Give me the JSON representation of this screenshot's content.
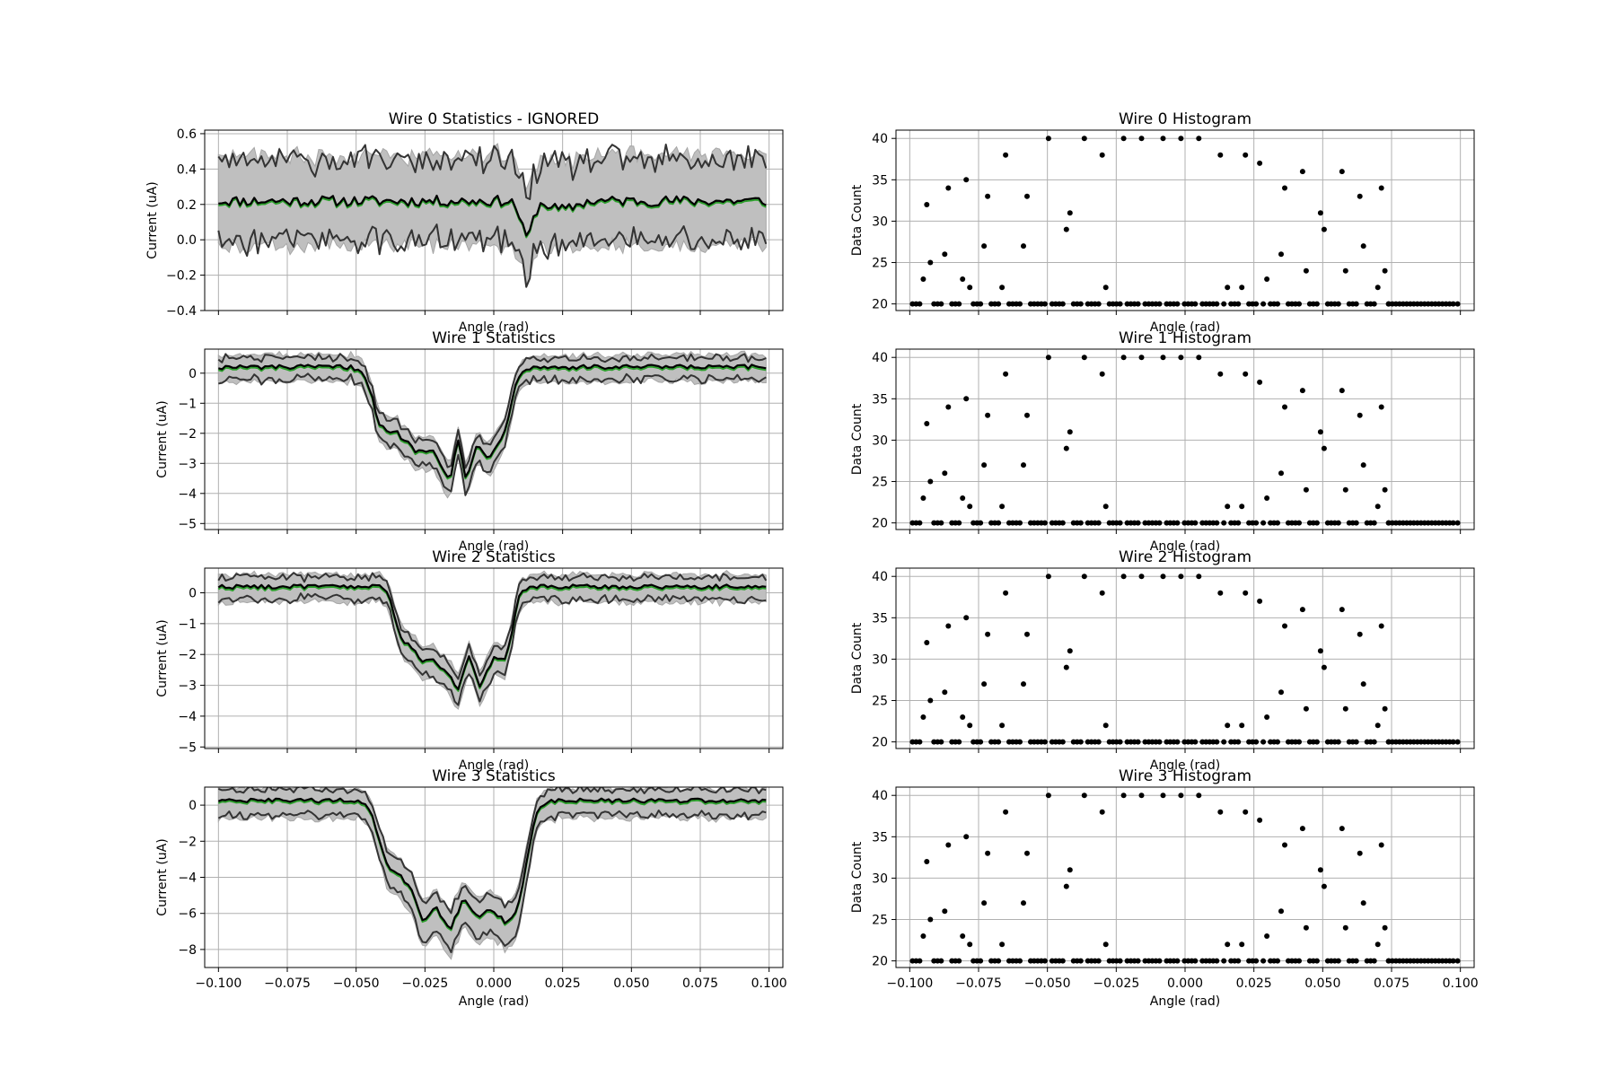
{
  "figure": {
    "background": "#ffffff"
  },
  "style": {
    "band_color": "#bfbfbf",
    "band_edge": "#a6a6a6",
    "envelope_color": "#333333",
    "mean_color": "#000000",
    "median_color": "#2ca02c",
    "marker_color": "#000000",
    "grid_color": "#b0b0b0"
  },
  "chart_data": [
    {
      "type": "area",
      "title": "Wire 0 Statistics - IGNORED",
      "xlabel": "Angle (rad)",
      "ylabel": "Current (uA)",
      "xlim": [
        -0.105,
        0.105
      ],
      "ylim": [
        -0.4,
        0.62
      ],
      "x_range": [
        -0.1,
        0.099
      ],
      "x_step": 0.0013,
      "xticks": [
        -0.1,
        -0.075,
        -0.05,
        -0.025,
        0,
        0.025,
        0.05,
        0.075,
        0.1
      ],
      "xticklabels": [],
      "yticks": [
        -0.4,
        -0.2,
        0,
        0.2,
        0.4,
        0.6
      ],
      "yticklabels": [
        "−0.4",
        "−0.2",
        "0.0",
        "0.2",
        "0.4",
        "0.6"
      ],
      "grid": true,
      "series": [
        {
          "role": "mean",
          "baseline": 0.22,
          "dips": [
            {
              "center": 0.012,
              "depth": 0.2,
              "width": 0.003
            },
            {
              "center": 0.025,
              "depth": 0.05,
              "width": 0.006
            }
          ],
          "noise": 0.03
        },
        {
          "role": "median",
          "baseline": 0.22,
          "dips": [
            {
              "center": 0.012,
              "depth": 0.2,
              "width": 0.003
            }
          ],
          "noise": 0.02
        },
        {
          "role": "band_upper",
          "offset": 0.26
        },
        {
          "role": "band_lower",
          "offset": -0.25
        },
        {
          "role": "envelope_max",
          "offset": 0.23,
          "noise": 0.07
        },
        {
          "role": "envelope_min",
          "offset": -0.22,
          "noise": 0.07
        }
      ]
    },
    {
      "type": "area",
      "title": "Wire 1 Statistics",
      "xlabel": "Angle (rad)",
      "ylabel": "Current (uA)",
      "xlim": [
        -0.105,
        0.105
      ],
      "ylim": [
        -5.2,
        0.8
      ],
      "x_range": [
        -0.1,
        0.099
      ],
      "x_step": 0.0013,
      "xticks": [
        -0.1,
        -0.075,
        -0.05,
        -0.025,
        0,
        0.025,
        0.05,
        0.075,
        0.1
      ],
      "xticklabels": [],
      "yticks": [
        -5,
        -4,
        -3,
        -2,
        -1,
        0
      ],
      "yticklabels": [
        "−5",
        "−4",
        "−3",
        "−2",
        "−1",
        "0"
      ],
      "grid": true,
      "series": [
        {
          "role": "mean",
          "baseline": 0.2,
          "trough_from": -0.044,
          "trough_to": 0.006,
          "edge_width": 0.006,
          "floor": [
            [
              -0.035,
              -2.0
            ],
            [
              -0.028,
              -2.6
            ],
            [
              -0.022,
              -2.5
            ],
            [
              -0.016,
              -3.6
            ],
            [
              -0.013,
              -2.2
            ],
            [
              -0.01,
              -3.6
            ],
            [
              -0.006,
              -2.3
            ],
            [
              -0.002,
              -2.8
            ],
            [
              0.003,
              -2.4
            ]
          ],
          "noise": 0.08
        },
        {
          "role": "band_upper",
          "offset": 0.4
        },
        {
          "role": "band_lower",
          "offset": -0.5
        },
        {
          "role": "envelope_max",
          "offset": 0.3,
          "noise": 0.1
        },
        {
          "role": "envelope_min",
          "offset": -0.4,
          "noise": 0.12
        }
      ]
    },
    {
      "type": "area",
      "title": "Wire 2 Statistics",
      "xlabel": "Angle (rad)",
      "ylabel": "Current (uA)",
      "xlim": [
        -0.105,
        0.105
      ],
      "ylim": [
        -5.05,
        0.8
      ],
      "x_range": [
        -0.1,
        0.099
      ],
      "x_step": 0.0013,
      "xticks": [
        -0.1,
        -0.075,
        -0.05,
        -0.025,
        0,
        0.025,
        0.05,
        0.075,
        0.1
      ],
      "xticklabels": [],
      "yticks": [
        -5,
        -4,
        -3,
        -2,
        -1,
        0
      ],
      "yticklabels": [
        "−5",
        "−4",
        "−3",
        "−2",
        "−1",
        "0"
      ],
      "grid": true,
      "series": [
        {
          "role": "mean",
          "baseline": 0.2,
          "trough_from": -0.036,
          "trough_to": 0.007,
          "edge_width": 0.005,
          "floor": [
            [
              -0.031,
              -1.7
            ],
            [
              -0.026,
              -2.2
            ],
            [
              -0.022,
              -2.2
            ],
            [
              -0.016,
              -2.6
            ],
            [
              -0.013,
              -3.2
            ],
            [
              -0.009,
              -2.0
            ],
            [
              -0.005,
              -3.1
            ],
            [
              0.0,
              -2.1
            ],
            [
              0.004,
              -2.3
            ]
          ],
          "noise": 0.07
        },
        {
          "role": "band_upper",
          "offset": 0.4
        },
        {
          "role": "band_lower",
          "offset": -0.5
        },
        {
          "role": "envelope_max",
          "offset": 0.3,
          "noise": 0.1
        },
        {
          "role": "envelope_min",
          "offset": -0.4,
          "noise": 0.12
        }
      ]
    },
    {
      "type": "area",
      "title": "Wire 3 Statistics",
      "xlabel": "Angle (rad)",
      "ylabel": "Current (uA)",
      "xlim": [
        -0.105,
        0.105
      ],
      "ylim": [
        -9.0,
        1.0
      ],
      "x_range": [
        -0.1,
        0.099
      ],
      "x_step": 0.0013,
      "xticks": [
        -0.1,
        -0.075,
        -0.05,
        -0.025,
        0,
        0.025,
        0.05,
        0.075,
        0.1
      ],
      "xticklabels": [
        "−0.100",
        "−0.075",
        "−0.050",
        "−0.025",
        "0.000",
        "0.025",
        "0.050",
        "0.075",
        "0.100"
      ],
      "yticks": [
        -8,
        -6,
        -4,
        -2,
        0
      ],
      "yticklabels": [
        "−8",
        "−6",
        "−4",
        "−2",
        "0"
      ],
      "grid": true,
      "series": [
        {
          "role": "mean",
          "baseline": 0.25,
          "trough_from": -0.042,
          "trough_to": 0.012,
          "edge_width": 0.007,
          "floor": [
            [
              -0.035,
              -3.8
            ],
            [
              -0.03,
              -4.6
            ],
            [
              -0.026,
              -6.5
            ],
            [
              -0.021,
              -5.6
            ],
            [
              -0.016,
              -6.9
            ],
            [
              -0.011,
              -5.2
            ],
            [
              -0.006,
              -6.2
            ],
            [
              -0.001,
              -5.8
            ],
            [
              0.004,
              -6.5
            ]
          ],
          "noise": 0.12
        },
        {
          "role": "band_upper",
          "offset": 0.7
        },
        {
          "role": "band_lower",
          "offset": -1.0
        },
        {
          "role": "envelope_max",
          "offset": 0.6,
          "noise": 0.15
        },
        {
          "role": "envelope_min",
          "offset": -0.8,
          "noise": 0.2
        }
      ]
    },
    {
      "type": "scatter",
      "title": "Wire 0 Histogram",
      "xlabel": "Angle (rad)",
      "ylabel": "Data Count",
      "xlim": [
        -0.105,
        0.105
      ],
      "ylim": [
        19.2,
        41.0
      ],
      "xticks": [
        -0.1,
        -0.075,
        -0.05,
        -0.025,
        0,
        0.025,
        0.05,
        0.075,
        0.1
      ],
      "xticklabels": [],
      "yticks": [
        20,
        25,
        30,
        35,
        40
      ],
      "yticklabels": [
        "20",
        "25",
        "30",
        "35",
        "40"
      ],
      "grid": true,
      "points": [
        [
          -0.099,
          20
        ],
        [
          -0.0977,
          20
        ],
        [
          -0.0964,
          20
        ],
        [
          -0.0951,
          23
        ],
        [
          -0.0938,
          32
        ],
        [
          -0.0925,
          25
        ],
        [
          -0.0912,
          20
        ],
        [
          -0.0899,
          20
        ],
        [
          -0.0886,
          20
        ],
        [
          -0.0873,
          26
        ],
        [
          -0.086,
          34
        ],
        [
          -0.0847,
          20
        ],
        [
          -0.0834,
          20
        ],
        [
          -0.0821,
          20
        ],
        [
          -0.0808,
          23
        ],
        [
          -0.0795,
          35
        ],
        [
          -0.0782,
          22
        ],
        [
          -0.0769,
          20
        ],
        [
          -0.0756,
          20
        ],
        [
          -0.0743,
          20
        ],
        [
          -0.073,
          27
        ],
        [
          -0.0717,
          33
        ],
        [
          -0.0704,
          20
        ],
        [
          -0.0691,
          20
        ],
        [
          -0.0678,
          20
        ],
        [
          -0.0665,
          22
        ],
        [
          -0.0652,
          38
        ],
        [
          -0.0639,
          20
        ],
        [
          -0.0626,
          20
        ],
        [
          -0.0613,
          20
        ],
        [
          -0.06,
          20
        ],
        [
          -0.0587,
          27
        ],
        [
          -0.0574,
          33
        ],
        [
          -0.0561,
          20
        ],
        [
          -0.0548,
          20
        ],
        [
          -0.0535,
          20
        ],
        [
          -0.0522,
          20
        ],
        [
          -0.0509,
          20
        ],
        [
          -0.0496,
          40
        ],
        [
          -0.0483,
          20
        ],
        [
          -0.047,
          20
        ],
        [
          -0.0457,
          20
        ],
        [
          -0.0444,
          20
        ],
        [
          -0.0431,
          29
        ],
        [
          -0.0418,
          31
        ],
        [
          -0.0405,
          20
        ],
        [
          -0.0392,
          20
        ],
        [
          -0.0379,
          20
        ],
        [
          -0.0366,
          40
        ],
        [
          -0.0353,
          20
        ],
        [
          -0.034,
          20
        ],
        [
          -0.0327,
          20
        ],
        [
          -0.0314,
          20
        ],
        [
          -0.0301,
          38
        ],
        [
          -0.0288,
          22
        ],
        [
          -0.0275,
          20
        ],
        [
          -0.0262,
          20
        ],
        [
          -0.0249,
          20
        ],
        [
          -0.0236,
          20
        ],
        [
          -0.0223,
          40
        ],
        [
          -0.021,
          20
        ],
        [
          -0.0197,
          20
        ],
        [
          -0.0184,
          20
        ],
        [
          -0.0171,
          20
        ],
        [
          -0.0158,
          40
        ],
        [
          -0.0145,
          20
        ],
        [
          -0.0132,
          20
        ],
        [
          -0.0119,
          20
        ],
        [
          -0.0106,
          20
        ],
        [
          -0.0093,
          20
        ],
        [
          -0.008,
          40
        ],
        [
          -0.0067,
          20
        ],
        [
          -0.0054,
          20
        ],
        [
          -0.0041,
          20
        ],
        [
          -0.0028,
          20
        ],
        [
          -0.0015,
          40
        ],
        [
          -0.0002,
          20
        ],
        [
          0.0011,
          20
        ],
        [
          0.0024,
          20
        ],
        [
          0.0037,
          20
        ],
        [
          0.005,
          40
        ],
        [
          0.0063,
          20
        ],
        [
          0.0076,
          20
        ],
        [
          0.0089,
          20
        ],
        [
          0.0102,
          20
        ],
        [
          0.0115,
          20
        ],
        [
          0.0128,
          38
        ],
        [
          0.0141,
          20
        ],
        [
          0.0154,
          22
        ],
        [
          0.0167,
          20
        ],
        [
          0.018,
          20
        ],
        [
          0.0193,
          20
        ],
        [
          0.0206,
          22
        ],
        [
          0.0219,
          38
        ],
        [
          0.0232,
          20
        ],
        [
          0.0245,
          20
        ],
        [
          0.0258,
          20
        ],
        [
          0.0271,
          37
        ],
        [
          0.0284,
          20
        ],
        [
          0.0297,
          23
        ],
        [
          0.031,
          20
        ],
        [
          0.0323,
          20
        ],
        [
          0.0336,
          20
        ],
        [
          0.0349,
          26
        ],
        [
          0.0362,
          34
        ],
        [
          0.0375,
          20
        ],
        [
          0.0388,
          20
        ],
        [
          0.0401,
          20
        ],
        [
          0.0414,
          20
        ],
        [
          0.0427,
          36
        ],
        [
          0.044,
          24
        ],
        [
          0.0453,
          20
        ],
        [
          0.0466,
          20
        ],
        [
          0.0479,
          20
        ],
        [
          0.0492,
          31
        ],
        [
          0.0505,
          29
        ],
        [
          0.0518,
          20
        ],
        [
          0.0531,
          20
        ],
        [
          0.0544,
          20
        ],
        [
          0.0557,
          20
        ],
        [
          0.057,
          36
        ],
        [
          0.0583,
          24
        ],
        [
          0.0596,
          20
        ],
        [
          0.0609,
          20
        ],
        [
          0.0622,
          20
        ],
        [
          0.0635,
          33
        ],
        [
          0.0648,
          27
        ],
        [
          0.0661,
          20
        ],
        [
          0.0674,
          20
        ],
        [
          0.0687,
          20
        ],
        [
          0.07,
          22
        ],
        [
          0.0713,
          34
        ],
        [
          0.0726,
          24
        ],
        [
          0.0739,
          20
        ],
        [
          0.074,
          20
        ],
        [
          0.0753,
          20
        ],
        [
          0.0766,
          20
        ],
        [
          0.0779,
          20
        ],
        [
          0.0792,
          20
        ],
        [
          0.0805,
          20
        ],
        [
          0.0818,
          20
        ],
        [
          0.0831,
          20
        ],
        [
          0.0844,
          20
        ],
        [
          0.0857,
          20
        ],
        [
          0.087,
          20
        ],
        [
          0.0883,
          20
        ],
        [
          0.0896,
          20
        ],
        [
          0.0909,
          20
        ],
        [
          0.0922,
          20
        ],
        [
          0.0935,
          20
        ],
        [
          0.0948,
          20
        ],
        [
          0.0961,
          20
        ],
        [
          0.0974,
          20
        ],
        [
          0.099,
          20
        ]
      ]
    },
    {
      "type": "scatter",
      "title": "Wire 1 Histogram",
      "xlabel": "Angle (rad)",
      "ylabel": "Data Count",
      "xlim": [
        -0.105,
        0.105
      ],
      "ylim": [
        19.2,
        41.0
      ],
      "xticks": [
        -0.1,
        -0.075,
        -0.05,
        -0.025,
        0,
        0.025,
        0.05,
        0.075,
        0.1
      ],
      "xticklabels": [],
      "yticks": [
        20,
        25,
        30,
        35,
        40
      ],
      "yticklabels": [
        "20",
        "25",
        "30",
        "35",
        "40"
      ],
      "grid": true,
      "points_ref": 0
    },
    {
      "type": "scatter",
      "title": "Wire 2 Histogram",
      "xlabel": "Angle (rad)",
      "ylabel": "Data Count",
      "xlim": [
        -0.105,
        0.105
      ],
      "ylim": [
        19.2,
        41.0
      ],
      "xticks": [
        -0.1,
        -0.075,
        -0.05,
        -0.025,
        0,
        0.025,
        0.05,
        0.075,
        0.1
      ],
      "xticklabels": [],
      "yticks": [
        20,
        25,
        30,
        35,
        40
      ],
      "yticklabels": [
        "20",
        "25",
        "30",
        "35",
        "40"
      ],
      "grid": true,
      "points_ref": 0
    },
    {
      "type": "scatter",
      "title": "Wire 3 Histogram",
      "xlabel": "Angle (rad)",
      "ylabel": "Data Count",
      "xlim": [
        -0.105,
        0.105
      ],
      "ylim": [
        19.2,
        41.0
      ],
      "xticks": [
        -0.1,
        -0.075,
        -0.05,
        -0.025,
        0,
        0.025,
        0.05,
        0.075,
        0.1
      ],
      "xticklabels": [
        "−0.100",
        "−0.075",
        "−0.050",
        "−0.025",
        "0.000",
        "0.025",
        "0.050",
        "0.075",
        "0.100"
      ],
      "yticks": [
        20,
        25,
        30,
        35,
        40
      ],
      "yticklabels": [
        "20",
        "25",
        "30",
        "35",
        "40"
      ],
      "grid": true,
      "points_ref": 0
    }
  ]
}
